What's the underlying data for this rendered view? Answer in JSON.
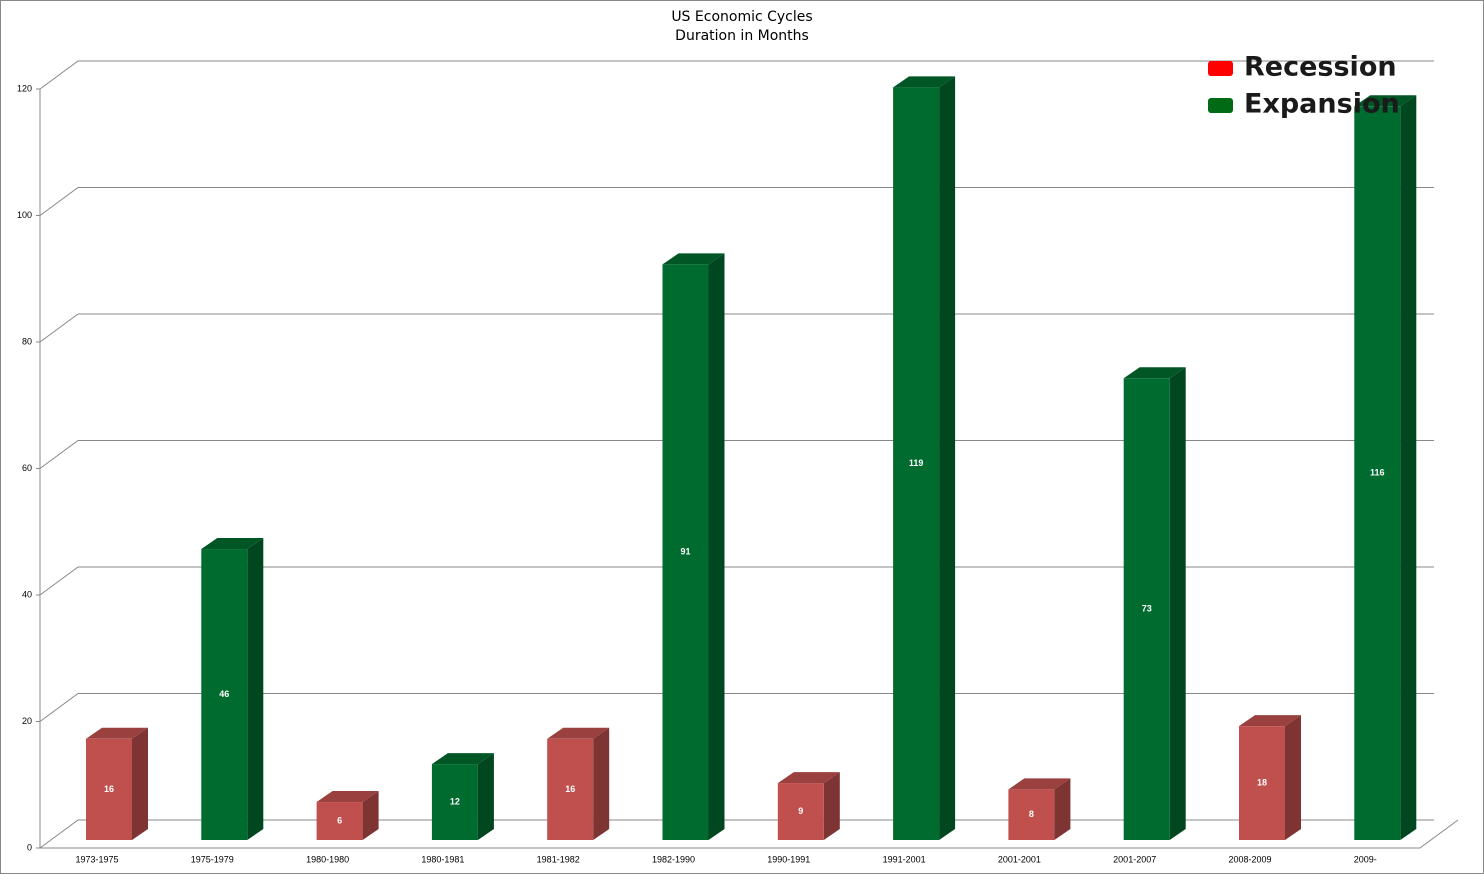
{
  "chart_data": {
    "type": "bar3d",
    "title": "US Economic Cycles",
    "subtitle": "Duration in Months",
    "categories": [
      "1973-1975",
      "1975-1979",
      "1980-1980",
      "1980-1981",
      "1981-1982",
      "1982-1990",
      "1990-1991",
      "1991-2001",
      "2001-2001",
      "2001-2007",
      "2008-2009",
      "2009-"
    ],
    "series": [
      {
        "name": "Recession",
        "color": "#c0504d",
        "legend_color": "#ff0000",
        "values": [
          16,
          null,
          6,
          null,
          16,
          null,
          9,
          null,
          8,
          null,
          18,
          null
        ]
      },
      {
        "name": "Expansion",
        "color": "#006b2e",
        "legend_color": "#006b14",
        "values": [
          null,
          46,
          null,
          12,
          null,
          91,
          null,
          119,
          null,
          73,
          null,
          116
        ]
      }
    ],
    "ylim": [
      0,
      120
    ],
    "yticks": [
      0,
      20,
      40,
      60,
      80,
      100,
      120
    ],
    "grid": true,
    "legend": "top-right"
  }
}
